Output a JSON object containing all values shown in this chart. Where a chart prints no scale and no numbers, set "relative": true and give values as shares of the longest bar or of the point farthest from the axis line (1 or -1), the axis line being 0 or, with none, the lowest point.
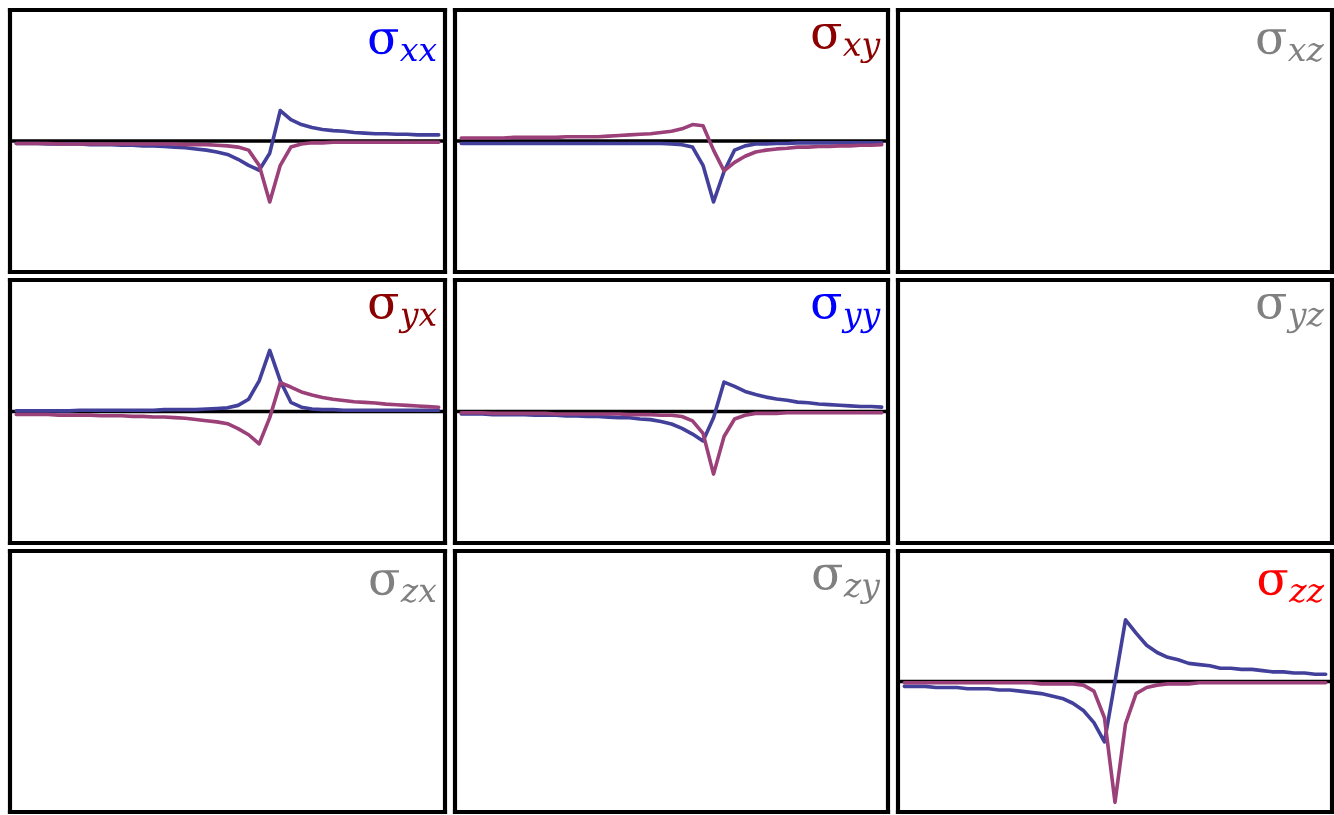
{
  "chart_data": [
    {
      "type": "line",
      "relative": true,
      "title": "σ$_{xx}$",
      "categories": [
        null,
        null,
        null,
        null,
        null,
        null,
        null,
        null,
        null,
        null,
        null,
        null,
        null,
        null,
        null,
        null,
        null,
        null,
        null,
        null,
        null,
        null,
        null,
        null,
        null,
        null,
        null,
        null,
        null,
        null,
        null,
        null,
        null,
        null,
        null,
        null,
        null,
        null,
        null,
        null,
        null
      ],
      "series": [
        {
          "color": "#42409a",
          "values": [
            -0.04,
            -0.04,
            -0.04,
            -0.05,
            -0.05,
            -0.05,
            -0.05,
            -0.06,
            -0.06,
            -0.06,
            -0.07,
            -0.07,
            -0.08,
            -0.08,
            -0.09,
            -0.1,
            -0.11,
            -0.13,
            -0.15,
            -0.18,
            -0.22,
            -0.3,
            -0.4,
            -0.48,
            -0.2,
            0.5,
            0.35,
            0.27,
            0.22,
            0.19,
            0.17,
            0.16,
            0.14,
            0.13,
            0.12,
            0.12,
            0.11,
            0.11,
            0.1,
            0.1,
            0.1
          ]
        },
        {
          "color": "#9b4079",
          "values": [
            -0.04,
            -0.04,
            -0.04,
            -0.04,
            -0.05,
            -0.05,
            -0.05,
            -0.05,
            -0.05,
            -0.05,
            -0.05,
            -0.05,
            -0.05,
            -0.05,
            -0.05,
            -0.05,
            -0.06,
            -0.06,
            -0.06,
            -0.07,
            -0.08,
            -0.1,
            -0.15,
            -0.4,
            -1,
            -0.4,
            -0.1,
            -0.05,
            -0.03,
            -0.03,
            -0.02,
            -0.02,
            -0.02,
            -0.02,
            -0.02,
            -0.02,
            -0.02,
            -0.02,
            -0.02,
            -0.02,
            -0.02
          ]
        }
      ]
    },
    {
      "type": "line",
      "relative": true,
      "title": "σ$_{xy}$",
      "categories": [
        null,
        null,
        null,
        null,
        null,
        null,
        null,
        null,
        null,
        null,
        null,
        null,
        null,
        null,
        null,
        null,
        null,
        null,
        null,
        null,
        null,
        null,
        null,
        null,
        null,
        null,
        null,
        null,
        null,
        null,
        null,
        null,
        null,
        null,
        null,
        null,
        null,
        null,
        null,
        null,
        null
      ],
      "series": [
        {
          "color": "#42409a",
          "values": [
            -0.04,
            -0.04,
            -0.04,
            -0.04,
            -0.04,
            -0.04,
            -0.04,
            -0.04,
            -0.04,
            -0.04,
            -0.04,
            -0.04,
            -0.04,
            -0.04,
            -0.04,
            -0.04,
            -0.04,
            -0.04,
            -0.04,
            -0.04,
            -0.05,
            -0.06,
            -0.1,
            -0.4,
            -1,
            -0.5,
            -0.15,
            -0.08,
            -0.05,
            -0.05,
            -0.04,
            -0.04,
            -0.03,
            -0.03,
            -0.03,
            -0.03,
            -0.03,
            -0.03,
            -0.03,
            -0.03,
            -0.03
          ]
        },
        {
          "color": "#9b4079",
          "values": [
            0.05,
            0.05,
            0.05,
            0.05,
            0.05,
            0.06,
            0.06,
            0.06,
            0.06,
            0.06,
            0.07,
            0.07,
            0.07,
            0.07,
            0.08,
            0.09,
            0.1,
            0.11,
            0.12,
            0.14,
            0.16,
            0.2,
            0.27,
            0.25,
            -0.15,
            -0.49,
            -0.35,
            -0.25,
            -0.18,
            -0.15,
            -0.13,
            -0.12,
            -0.1,
            -0.1,
            -0.09,
            -0.09,
            -0.08,
            -0.08,
            -0.07,
            -0.07,
            -0.06
          ]
        }
      ]
    },
    {
      "type": "other",
      "title": "σ$_{xz}$"
    },
    {
      "type": "line",
      "relative": true,
      "title": "σ$_{yx}$",
      "categories": [
        null,
        null,
        null,
        null,
        null,
        null,
        null,
        null,
        null,
        null,
        null,
        null,
        null,
        null,
        null,
        null,
        null,
        null,
        null,
        null,
        null,
        null,
        null,
        null,
        null,
        null,
        null,
        null,
        null,
        null,
        null,
        null,
        null,
        null,
        null,
        null,
        null,
        null,
        null,
        null,
        null
      ],
      "series": [
        {
          "color": "#42409a",
          "values": [
            0.01,
            0.01,
            0.01,
            0.01,
            0.01,
            0.01,
            0.02,
            0.02,
            0.02,
            0.02,
            0.02,
            0.02,
            0.02,
            0.02,
            0.03,
            0.03,
            0.03,
            0.03,
            0.04,
            0.05,
            0.06,
            0.1,
            0.2,
            0.5,
            1,
            0.5,
            0.15,
            0.07,
            0.04,
            0.03,
            0.03,
            0.02,
            0.02,
            0.02,
            0.02,
            0.02,
            0.02,
            0.02,
            0.02,
            0.02,
            0.02
          ]
        },
        {
          "color": "#9b4079",
          "values": [
            -0.05,
            -0.05,
            -0.05,
            -0.05,
            -0.06,
            -0.06,
            -0.06,
            -0.06,
            -0.07,
            -0.07,
            -0.07,
            -0.08,
            -0.08,
            -0.09,
            -0.09,
            -0.1,
            -0.11,
            -0.13,
            -0.15,
            -0.17,
            -0.2,
            -0.28,
            -0.38,
            -0.53,
            -0.1,
            0.47,
            0.4,
            0.32,
            0.27,
            0.23,
            0.2,
            0.18,
            0.16,
            0.15,
            0.14,
            0.12,
            0.11,
            0.1,
            0.09,
            0.08,
            0.07
          ]
        }
      ]
    },
    {
      "type": "line",
      "relative": true,
      "title": "σ$_{yy}$",
      "categories": [
        null,
        null,
        null,
        null,
        null,
        null,
        null,
        null,
        null,
        null,
        null,
        null,
        null,
        null,
        null,
        null,
        null,
        null,
        null,
        null,
        null,
        null,
        null,
        null,
        null,
        null,
        null,
        null,
        null,
        null,
        null,
        null,
        null,
        null,
        null,
        null,
        null,
        null,
        null,
        null,
        null
      ],
      "series": [
        {
          "color": "#42409a",
          "values": [
            -0.04,
            -0.04,
            -0.04,
            -0.05,
            -0.05,
            -0.05,
            -0.05,
            -0.06,
            -0.06,
            -0.06,
            -0.07,
            -0.07,
            -0.08,
            -0.08,
            -0.09,
            -0.1,
            -0.1,
            -0.12,
            -0.13,
            -0.16,
            -0.2,
            -0.27,
            -0.36,
            -0.47,
            -0.1,
            0.47,
            0.4,
            0.32,
            0.27,
            0.23,
            0.2,
            0.18,
            0.15,
            0.14,
            0.12,
            0.11,
            0.1,
            0.09,
            0.08,
            0.08,
            0.07
          ]
        },
        {
          "color": "#9b4079",
          "values": [
            -0.02,
            -0.02,
            -0.02,
            -0.03,
            -0.03,
            -0.03,
            -0.03,
            -0.03,
            -0.03,
            -0.04,
            -0.04,
            -0.04,
            -0.04,
            -0.04,
            -0.04,
            -0.04,
            -0.05,
            -0.05,
            -0.05,
            -0.06,
            -0.06,
            -0.08,
            -0.15,
            -0.35,
            -1,
            -0.4,
            -0.12,
            -0.06,
            -0.03,
            -0.03,
            -0.03,
            -0.02,
            -0.02,
            -0.02,
            -0.02,
            -0.02,
            -0.02,
            -0.02,
            -0.02,
            -0.02,
            -0.02
          ]
        }
      ]
    },
    {
      "type": "other",
      "title": "σ$_{yz}$"
    },
    {
      "type": "other",
      "title": "σ$_{zx}$"
    },
    {
      "type": "other",
      "title": "σ$_{zy}$"
    },
    {
      "type": "line",
      "relative": true,
      "title": "σ$_{zz}$",
      "categories": [
        null,
        null,
        null,
        null,
        null,
        null,
        null,
        null,
        null,
        null,
        null,
        null,
        null,
        null,
        null,
        null,
        null,
        null,
        null,
        null,
        null,
        null,
        null,
        null,
        null,
        null,
        null,
        null,
        null,
        null,
        null,
        null,
        null,
        null,
        null,
        null,
        null,
        null,
        null,
        null,
        null
      ],
      "series": [
        {
          "color": "#42409a",
          "values": [
            -0.04,
            -0.04,
            -0.04,
            -0.05,
            -0.05,
            -0.05,
            -0.06,
            -0.06,
            -0.06,
            -0.07,
            -0.07,
            -0.08,
            -0.09,
            -0.1,
            -0.12,
            -0.14,
            -0.18,
            -0.24,
            -0.34,
            -0.5,
            0,
            0.51,
            0.4,
            0.3,
            0.24,
            0.2,
            0.18,
            0.15,
            0.14,
            0.13,
            0.11,
            0.11,
            0.1,
            0.1,
            0.09,
            0.08,
            0.08,
            0.07,
            0.07,
            0.06,
            0.06
          ]
        },
        {
          "color": "#9b4079",
          "values": [
            -0.01,
            -0.01,
            -0.01,
            -0.01,
            -0.01,
            -0.01,
            -0.01,
            -0.01,
            -0.01,
            -0.01,
            -0.01,
            -0.01,
            -0.01,
            -0.02,
            -0.02,
            -0.02,
            -0.02,
            -0.03,
            -0.08,
            -0.3,
            -1,
            -0.35,
            -0.1,
            -0.05,
            -0.03,
            -0.02,
            -0.02,
            -0.02,
            -0.01,
            -0.01,
            -0.01,
            -0.01,
            -0.01,
            -0.01,
            -0.01,
            -0.01,
            -0.01,
            -0.01,
            -0.01,
            -0.01,
            -0.01
          ]
        }
      ]
    }
  ]
}
